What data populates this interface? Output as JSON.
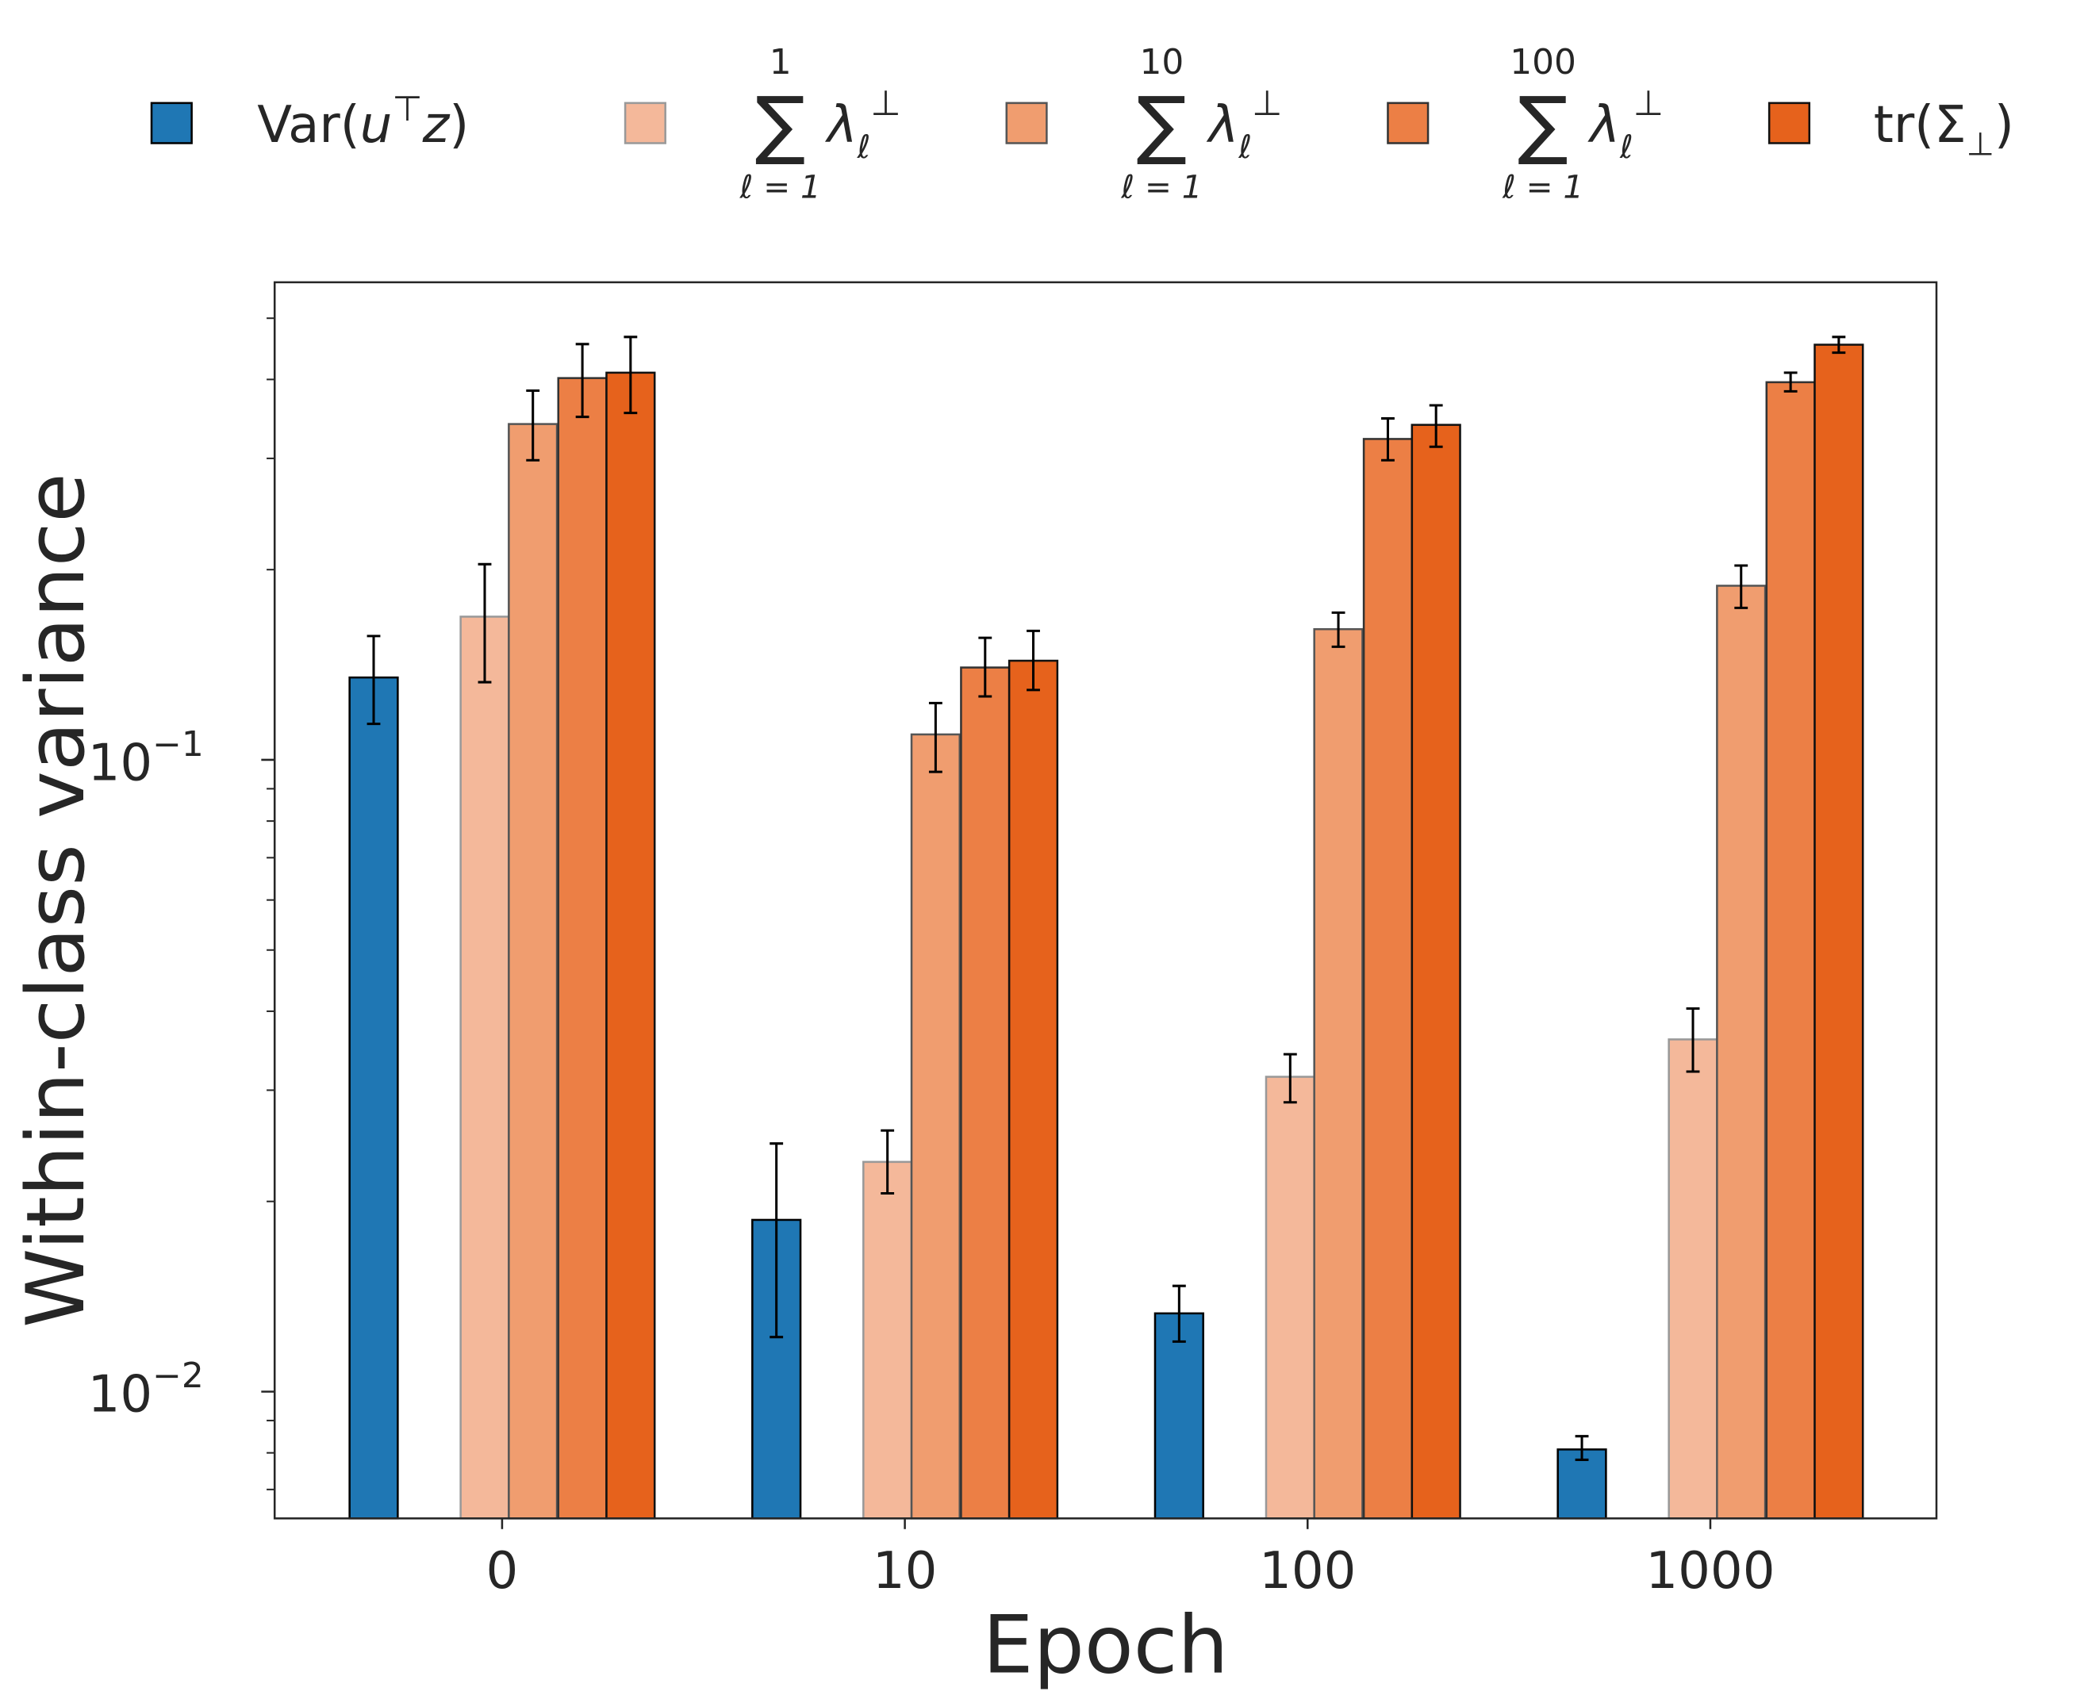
{
  "chart_data": {
    "type": "bar",
    "title": "",
    "xlabel": "Epoch",
    "ylabel": "Within-class variance",
    "yscale": "log",
    "ylim": [
      0.0063,
      0.57
    ],
    "yticks": [
      {
        "value": 0.1,
        "base": "10",
        "exp": "−1"
      },
      {
        "value": 0.01,
        "base": "10",
        "exp": "−2"
      }
    ],
    "categories": [
      "0",
      "10",
      "100",
      "1000"
    ],
    "grid": false,
    "legend_placement": "top, outside",
    "series": [
      {
        "legend": {
          "main": "Var(",
          "italic": "u",
          "sup": "⊤",
          "italic2": "z",
          "end": ")"
        },
        "color": "#1f77b4",
        "edge": "#000000",
        "values": [
          0.135,
          0.0187,
          0.0133,
          0.0081
        ],
        "err_low": [
          0.114,
          0.0122,
          0.012,
          0.0078
        ],
        "err_high": [
          0.157,
          0.0247,
          0.0147,
          0.0085
        ]
      },
      {
        "legend": {
          "sum_top": "1",
          "sum_bottom": "ℓ = 1",
          "lambda": "λ",
          "sub": "ℓ",
          "sup": "⊥"
        },
        "color": "#f4b89a",
        "edge": "#999999",
        "values": [
          0.1685,
          0.0231,
          0.0315,
          0.0361
        ],
        "err_low": [
          0.1327,
          0.0206,
          0.0287,
          0.0321
        ],
        "err_high": [
          0.204,
          0.0259,
          0.0342,
          0.0404
        ]
      },
      {
        "legend": {
          "sum_top": "10",
          "sum_bottom": "ℓ = 1",
          "lambda": "λ",
          "sub": "ℓ",
          "sup": "⊥"
        },
        "color": "#f09d6f",
        "edge": "#555555",
        "values": [
          0.34,
          0.1097,
          0.161,
          0.1886
        ],
        "err_low": [
          0.298,
          0.0957,
          0.151,
          0.174
        ],
        "err_high": [
          0.384,
          0.123,
          0.171,
          0.203
        ]
      },
      {
        "legend": {
          "sum_top": "100",
          "sum_bottom": "ℓ = 1",
          "lambda": "λ",
          "sub": "ℓ",
          "sup": "⊥"
        },
        "color": "#ec7f45",
        "edge": "#333333",
        "values": [
          0.402,
          0.14,
          0.322,
          0.396
        ],
        "err_low": [
          0.349,
          0.126,
          0.298,
          0.383
        ],
        "err_high": [
          0.455,
          0.156,
          0.347,
          0.41
        ]
      },
      {
        "legend": {
          "main": "tr(Σ",
          "sub": "⊥",
          "end": ")"
        },
        "color": "#e6621c",
        "edge": "#111111",
        "values": [
          0.41,
          0.1435,
          0.339,
          0.454
        ],
        "err_low": [
          0.354,
          0.129,
          0.313,
          0.441
        ],
        "err_high": [
          0.467,
          0.16,
          0.364,
          0.467
        ]
      }
    ]
  }
}
